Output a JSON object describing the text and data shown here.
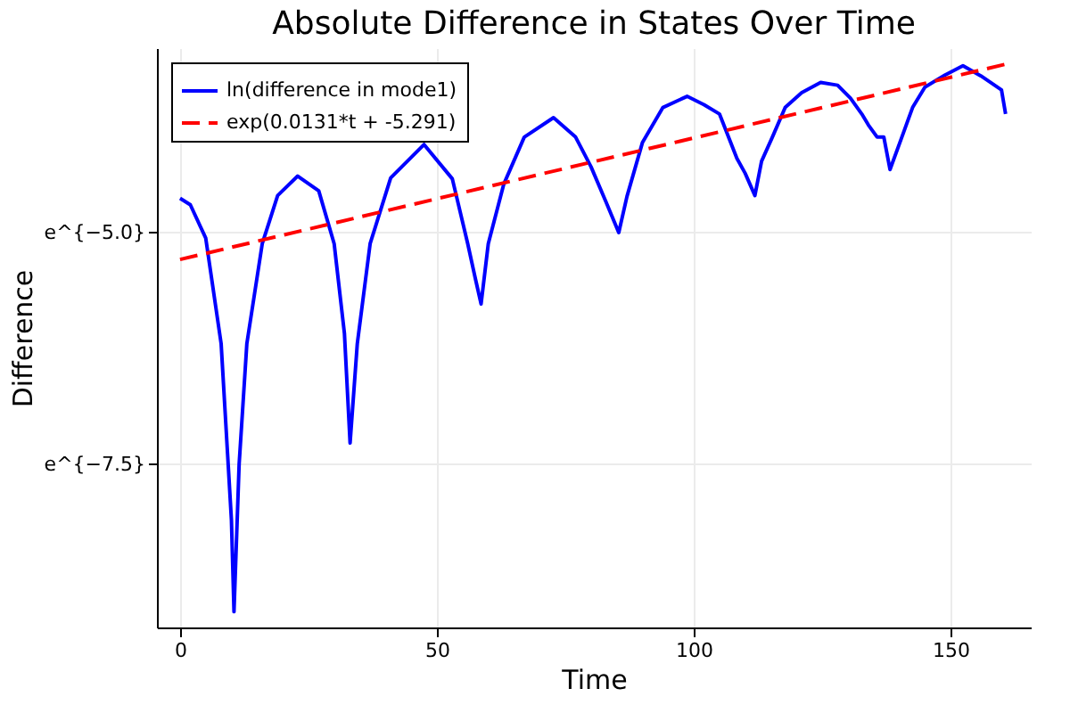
{
  "chart_data": {
    "type": "line",
    "title": "Absolute Difference in States Over Time",
    "xlabel": "Time",
    "ylabel": "Difference",
    "xlim": [
      -4.5,
      165.6
    ],
    "ylim": [
      -9.26,
      -3.01
    ],
    "xticks": [
      0,
      50,
      100,
      150
    ],
    "yticks": [
      {
        "value": -7.5,
        "label": "e^{−7.5}"
      },
      {
        "value": -5.0,
        "label": "e^{−5.0}"
      }
    ],
    "grid": true,
    "legend": "top left",
    "series": [
      {
        "name": "ln(difference in mode1)",
        "color": "#0000ff",
        "line_style": "solid",
        "x": [
          0,
          2,
          5,
          8,
          10,
          10.5,
          11.5,
          13,
          16,
          19,
          22.9,
          27,
          30,
          32,
          33.1,
          34.5,
          37,
          41,
          47.5,
          53,
          56,
          57.5,
          58.6,
          60,
          63,
          67,
          72.7,
          77,
          80,
          83,
          85.4,
          87,
          90,
          94,
          98.7,
          102,
          105,
          108.4,
          110,
          111.9,
          113.2,
          115.3,
          117.8,
          121,
          124.7,
          128,
          130.5,
          132.7,
          134,
          135.7,
          137,
          138.2,
          140.9,
          142.6,
          145,
          148.9,
          152.4,
          155.9,
          159.9,
          160.7
        ],
        "values": [
          -4.63,
          -4.7,
          -5.06,
          -6.2,
          -8.1,
          -9.09,
          -7.5,
          -6.2,
          -5.12,
          -4.6,
          -4.39,
          -4.55,
          -5.12,
          -6.09,
          -7.27,
          -6.2,
          -5.12,
          -4.41,
          -4.05,
          -4.42,
          -5.12,
          -5.5,
          -5.77,
          -5.12,
          -4.48,
          -3.97,
          -3.76,
          -3.97,
          -4.29,
          -4.68,
          -5.0,
          -4.61,
          -4.03,
          -3.65,
          -3.53,
          -3.62,
          -3.72,
          -4.2,
          -4.36,
          -4.6,
          -4.23,
          -3.97,
          -3.65,
          -3.49,
          -3.38,
          -3.41,
          -3.55,
          -3.72,
          -3.84,
          -3.97,
          -3.97,
          -4.32,
          -3.91,
          -3.65,
          -3.43,
          -3.3,
          -3.2,
          -3.31,
          -3.46,
          -3.72
        ]
      },
      {
        "name": "exp(0.0131*t + -5.291)",
        "color": "#ff0000",
        "line_style": "dashed",
        "x": [
          0,
          161
        ],
        "values": [
          -5.29,
          -3.18
        ]
      }
    ]
  }
}
